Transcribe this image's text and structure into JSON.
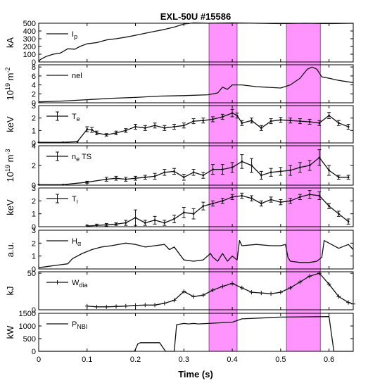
{
  "chart_data": {
    "type": "line",
    "title": "EXL-50U #15586",
    "xlabel": "Time (s)",
    "xlim": [
      0,
      0.65
    ],
    "xticks": [
      0,
      0.1,
      0.2,
      0.3,
      0.4,
      0.5,
      0.6
    ],
    "xtick_labels": [
      "0",
      "0.1",
      "0.2",
      "0.3",
      "0.4",
      "0.5",
      "0.6"
    ],
    "highlight_color": "#ff00ff",
    "highlight_intervals": [
      [
        0.352,
        0.41
      ],
      [
        0.512,
        0.582
      ]
    ],
    "panels": [
      {
        "ylabel": "kA",
        "legend": {
          "label": "I",
          "sub": "p",
          "style": "line"
        },
        "ylim": [
          0,
          500
        ],
        "yticks": [
          0,
          100,
          200,
          300,
          400,
          500
        ],
        "ytick_labels": [
          "0",
          "100",
          "200",
          "300",
          "400",
          "500"
        ],
        "series": [
          {
            "marker": "none",
            "x": [
              0,
              0.003,
              0.015,
              0.03,
              0.045,
              0.06,
              0.075,
              0.085,
              0.1,
              0.12,
              0.14,
              0.16,
              0.18,
              0.2,
              0.22,
              0.24,
              0.26,
              0.28,
              0.3,
              0.32,
              0.35,
              0.4,
              0.45,
              0.5,
              0.55,
              0.6,
              0.65
            ],
            "y": [
              0,
              30,
              70,
              100,
              115,
              170,
              165,
              200,
              235,
              250,
              285,
              300,
              320,
              345,
              370,
              395,
              420,
              450,
              490,
              505,
              500,
              505,
              500,
              495,
              500,
              495,
              500
            ]
          }
        ]
      },
      {
        "ylabel": "10^19 m^-2",
        "legend": {
          "label": "nel",
          "sub": "",
          "style": "line"
        },
        "ylim": [
          0,
          8.5
        ],
        "yticks": [
          0,
          2,
          4,
          6,
          8
        ],
        "ytick_labels": [
          "0",
          "2",
          "4",
          "6",
          "8"
        ],
        "series": [
          {
            "marker": "none",
            "x": [
              0,
              0.05,
              0.1,
              0.15,
              0.2,
              0.25,
              0.3,
              0.35,
              0.37,
              0.38,
              0.39,
              0.4,
              0.42,
              0.45,
              0.5,
              0.52,
              0.54,
              0.555,
              0.565,
              0.575,
              0.585,
              0.6,
              0.62,
              0.65
            ],
            "y": [
              0.2,
              0.4,
              0.7,
              1.0,
              1.2,
              1.5,
              1.6,
              1.8,
              2.2,
              3.5,
              3.0,
              4.0,
              4.0,
              3.6,
              3.3,
              4.0,
              5.5,
              7.5,
              8.0,
              7.5,
              5.8,
              5.5,
              5.0,
              4.5
            ]
          }
        ]
      },
      {
        "ylabel": "keV",
        "legend": {
          "label": "T",
          "sub": "e",
          "style": "errorbar"
        },
        "ylim": [
          0,
          3
        ],
        "yticks": [
          0,
          1,
          2,
          3
        ],
        "ytick_labels": [
          "0",
          "1",
          "2",
          "3"
        ],
        "series": [
          {
            "marker": "errorbar",
            "x": [
              0,
              0.05,
              0.08,
              0.1,
              0.11,
              0.12,
              0.14,
              0.16,
              0.18,
              0.2,
              0.22,
              0.24,
              0.26,
              0.28,
              0.3,
              0.32,
              0.34,
              0.36,
              0.38,
              0.4,
              0.41,
              0.42,
              0.44,
              0.46,
              0.48,
              0.5,
              0.52,
              0.54,
              0.56,
              0.58,
              0.6,
              0.62,
              0.64
            ],
            "y": [
              0.05,
              0.05,
              0.1,
              1.1,
              1.05,
              0.8,
              0.65,
              0.8,
              1.0,
              1.3,
              1.2,
              1.4,
              1.2,
              1.3,
              1.4,
              1.75,
              1.8,
              1.9,
              2.1,
              2.4,
              2.2,
              1.6,
              1.8,
              1.2,
              1.75,
              1.85,
              1.8,
              1.75,
              1.7,
              1.6,
              2.2,
              1.6,
              1.3
            ],
            "err": [
              0,
              0,
              0,
              0.2,
              0.2,
              0.15,
              0.1,
              0.15,
              0.15,
              0.2,
              0.2,
              0.2,
              0.2,
              0.2,
              0.2,
              0.2,
              0.2,
              0.2,
              0.2,
              0.3,
              0.2,
              0.2,
              0.2,
              0.2,
              0.2,
              0.2,
              0.2,
              0.2,
              0.2,
              0.2,
              0.25,
              0.2,
              0.2
            ]
          }
        ]
      },
      {
        "ylabel": "10^19 m^-3",
        "legend": {
          "label": "n",
          "sub": "e",
          "suffix": " TS",
          "style": "errorbar"
        },
        "ylim": [
          0,
          4
        ],
        "yticks": [
          0,
          2,
          4
        ],
        "ytick_labels": [
          "0",
          "2",
          "4"
        ],
        "series": [
          {
            "marker": "errorbar",
            "x": [
              0,
              0.05,
              0.1,
              0.14,
              0.16,
              0.18,
              0.2,
              0.22,
              0.24,
              0.26,
              0.28,
              0.3,
              0.32,
              0.34,
              0.36,
              0.38,
              0.4,
              0.42,
              0.44,
              0.46,
              0.48,
              0.5,
              0.52,
              0.54,
              0.56,
              0.58,
              0.6,
              0.62,
              0.64
            ],
            "y": [
              0.05,
              0.05,
              0.3,
              0.6,
              0.7,
              0.6,
              0.7,
              0.8,
              0.9,
              1.3,
              1.4,
              0.8,
              1.3,
              1.0,
              1.6,
              1.6,
              1.8,
              2.4,
              2.0,
              1.0,
              1.3,
              1.4,
              1.5,
              1.8,
              2.0,
              2.8,
              1.5,
              0.8,
              0.8
            ],
            "err": [
              0,
              0,
              0.1,
              0.2,
              0.2,
              0.2,
              0.2,
              0.2,
              0.3,
              0.3,
              0.3,
              0.3,
              0.3,
              0.3,
              0.5,
              0.5,
              0.5,
              0.7,
              0.7,
              0.4,
              0.4,
              0.4,
              0.5,
              0.5,
              0.5,
              0.8,
              0.5,
              0.2,
              0.2
            ]
          }
        ]
      },
      {
        "ylabel": "keV",
        "legend": {
          "label": "T",
          "sub": "i",
          "style": "errorbar"
        },
        "ylim": [
          0,
          3
        ],
        "yticks": [
          0,
          1,
          2,
          3
        ],
        "ytick_labels": [
          "0",
          "1",
          "2",
          "3"
        ],
        "series": [
          {
            "marker": "errorbar",
            "x": [
              0.1,
              0.12,
              0.14,
              0.16,
              0.18,
              0.2,
              0.22,
              0.24,
              0.26,
              0.28,
              0.3,
              0.32,
              0.34,
              0.36,
              0.38,
              0.4,
              0.42,
              0.44,
              0.46,
              0.48,
              0.5,
              0.52,
              0.54,
              0.56,
              0.58,
              0.6,
              0.62,
              0.64
            ],
            "y": [
              0.05,
              0.1,
              0.15,
              0.2,
              0.3,
              0.7,
              0.3,
              0.5,
              0.3,
              0.6,
              1.1,
              1.0,
              1.6,
              1.8,
              2.0,
              2.3,
              2.4,
              2.2,
              1.8,
              2.1,
              1.9,
              2.0,
              2.3,
              2.5,
              2.4,
              1.6,
              1.0,
              0.4
            ],
            "err": [
              0.05,
              0.1,
              0.1,
              0.1,
              0.2,
              0.6,
              0.2,
              0.3,
              0.2,
              0.3,
              0.4,
              0.4,
              0.3,
              0.2,
              0.2,
              0.2,
              0.2,
              0.2,
              0.2,
              0.2,
              0.2,
              0.2,
              0.2,
              0.3,
              0.3,
              0.2,
              0.2,
              0.2
            ]
          }
        ]
      },
      {
        "ylabel": "a.u.",
        "legend": {
          "label": "H",
          "sub": "α",
          "style": "line"
        },
        "ylim": [
          0,
          3
        ],
        "yticks": [
          0,
          1,
          2,
          3
        ],
        "ytick_labels": [
          "0",
          "1",
          "2",
          "3"
        ],
        "series": [
          {
            "marker": "none",
            "x": [
              0,
              0.02,
              0.04,
              0.06,
              0.07,
              0.09,
              0.11,
              0.13,
              0.15,
              0.18,
              0.2,
              0.22,
              0.24,
              0.26,
              0.27,
              0.28,
              0.3,
              0.32,
              0.34,
              0.355,
              0.36,
              0.37,
              0.38,
              0.39,
              0.4,
              0.41,
              0.415,
              0.42,
              0.45,
              0.48,
              0.5,
              0.51,
              0.515,
              0.52,
              0.54,
              0.56,
              0.575,
              0.585,
              0.59,
              0.6,
              0.62,
              0.64,
              0.65
            ],
            "y": [
              0.1,
              0.2,
              0.3,
              0.4,
              0.8,
              1.2,
              1.5,
              1.7,
              1.8,
              2.0,
              1.9,
              1.7,
              1.8,
              1.9,
              1.5,
              1.7,
              0.7,
              0.6,
              0.7,
              1.2,
              0.9,
              0.6,
              1.2,
              0.6,
              1.0,
              0.7,
              2.2,
              1.8,
              1.9,
              1.8,
              1.8,
              1.9,
              0.9,
              0.6,
              0.5,
              0.5,
              0.6,
              0.9,
              2.2,
              2.0,
              1.6,
              1.9,
              1.5
            ]
          }
        ]
      },
      {
        "ylabel": "kJ",
        "legend": {
          "label": "W",
          "sub": "dia",
          "style": "plus"
        },
        "ylim": [
          0,
          52
        ],
        "yticks": [
          0,
          50
        ],
        "ytick_labels": [
          "0",
          "50"
        ],
        "series": [
          {
            "marker": "plus",
            "x": [
              0.1,
              0.12,
              0.14,
              0.16,
              0.18,
              0.2,
              0.22,
              0.24,
              0.26,
              0.28,
              0.3,
              0.32,
              0.34,
              0.36,
              0.38,
              0.4,
              0.42,
              0.44,
              0.46,
              0.48,
              0.5,
              0.52,
              0.54,
              0.56,
              0.58,
              0.6,
              0.62,
              0.64,
              0.65
            ],
            "y": [
              5,
              4,
              4,
              4.5,
              5,
              6,
              6.5,
              6.5,
              9,
              13,
              25,
              18,
              20,
              27,
              32,
              36,
              30,
              24,
              23,
              22,
              24,
              30,
              38,
              46,
              50,
              35,
              18,
              10,
              8
            ]
          }
        ]
      },
      {
        "ylabel": "kW",
        "legend": {
          "label": "P",
          "sub": "NBI",
          "style": "line"
        },
        "ylim": [
          0,
          1500
        ],
        "yticks": [
          0,
          500,
          1000,
          1500
        ],
        "ytick_labels": [
          "0",
          "500",
          "1000",
          "1500"
        ],
        "series": [
          {
            "marker": "none",
            "x": [
              0,
              0.198,
              0.205,
              0.21,
              0.25,
              0.262,
              0.27,
              0.28,
              0.285,
              0.3,
              0.31,
              0.32,
              0.33,
              0.4,
              0.42,
              0.5,
              0.6,
              0.61,
              0.65
            ],
            "y": [
              0,
              0,
              300,
              340,
              340,
              0,
              0,
              0,
              1050,
              1100,
              1080,
              1100,
              1080,
              1150,
              1280,
              1350,
              1370,
              0,
              0
            ]
          }
        ]
      }
    ]
  }
}
